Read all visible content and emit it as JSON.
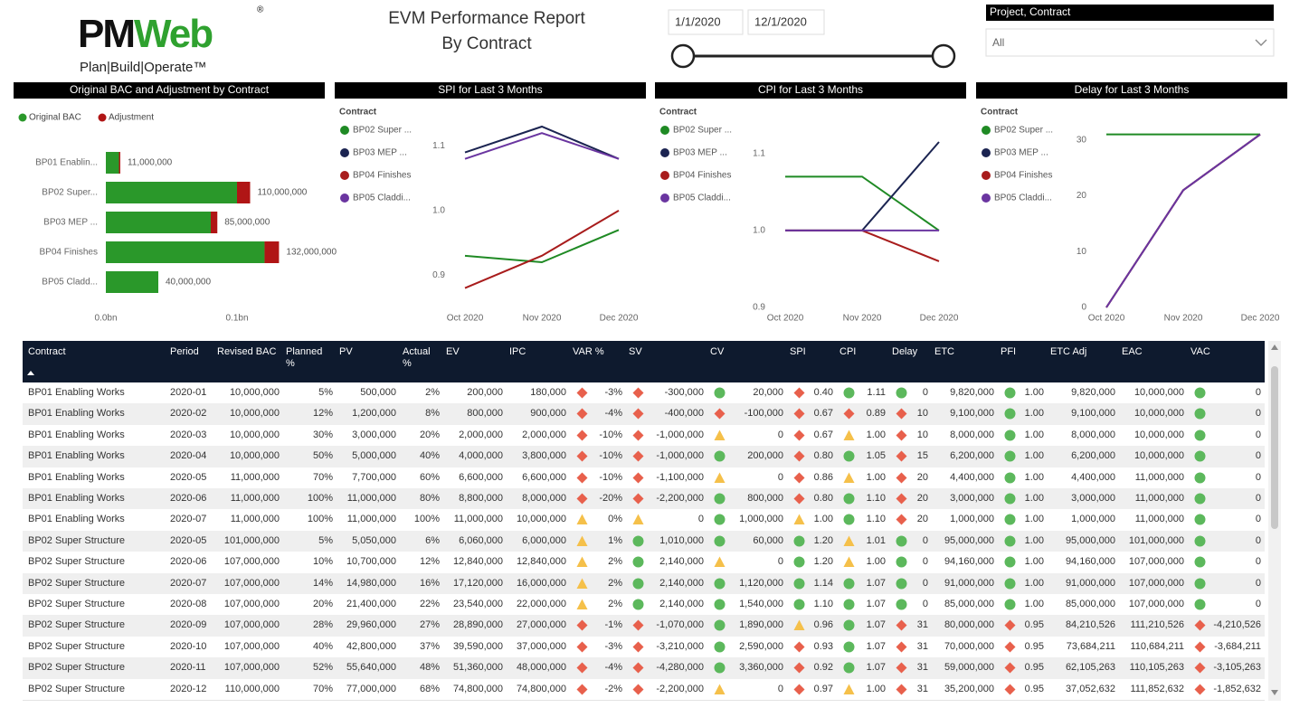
{
  "header": {
    "logo": {
      "parts": [
        "PM",
        "Web"
      ],
      "mark": "®",
      "tagline": "Plan|Build|Operate™"
    },
    "title_lines": [
      "EVM Performance Report",
      "By Contract"
    ],
    "date_start": "1/1/2020",
    "date_end": "12/1/2020",
    "filter": {
      "label": "Project, Contract",
      "value": "All"
    }
  },
  "chart_data": [
    {
      "type": "bar",
      "horizontal": true,
      "stacked": true,
      "title": "Original BAC and Adjustment by Contract",
      "categories": [
        "BP01 Enablin...",
        "BP02 Super...",
        "BP03 MEP ...",
        "BP04 Finishes",
        "BP05 Cladd..."
      ],
      "series": [
        {
          "name": "Original BAC",
          "color": "#2a982a",
          "values": [
            10000000,
            100000000,
            80000000,
            121000000,
            40000000
          ]
        },
        {
          "name": "Adjustment",
          "color": "#b01515",
          "values": [
            1000000,
            10000000,
            5000000,
            11000000,
            0
          ]
        }
      ],
      "total_labels": [
        "11,000,000",
        "110,000,000",
        "85,000,000",
        "132,000,000",
        "40,000,000"
      ],
      "xlim": [
        0,
        160000000
      ],
      "xticks": [
        {
          "value": 0,
          "label": "0.0bn"
        },
        {
          "value": 100000000,
          "label": "0.1bn"
        }
      ]
    },
    {
      "type": "line",
      "title": "SPI for Last 3 Months",
      "legend_title": "Contract",
      "categories": [
        "Oct 2020",
        "Nov 2020",
        "Dec 2020"
      ],
      "series": [
        {
          "name": "BP02 Super ...",
          "color": "#1f8a24",
          "values": [
            0.93,
            0.92,
            0.97
          ]
        },
        {
          "name": "BP03 MEP ...",
          "color": "#1b2451",
          "values": [
            1.09,
            1.13,
            1.08
          ]
        },
        {
          "name": "BP04 Finishes",
          "color": "#a81c1c",
          "values": [
            0.88,
            0.93,
            1.0
          ]
        },
        {
          "name": "BP05 Claddi...",
          "color": "#6a35a0",
          "values": [
            1.08,
            1.12,
            1.08
          ]
        }
      ],
      "ylim": [
        0.85,
        1.13
      ],
      "yticks": [
        0.9,
        {
          "value": 1,
          "label": "1.0"
        },
        1.1
      ]
    },
    {
      "type": "line",
      "title": "CPI for Last 3 Months",
      "legend_title": "Contract",
      "categories": [
        "Oct 2020",
        "Nov 2020",
        "Dec 2020"
      ],
      "series": [
        {
          "name": "BP02 Super ...",
          "color": "#1f8a24",
          "values": [
            1.07,
            1.07,
            1.0
          ]
        },
        {
          "name": "BP03 MEP ...",
          "color": "#1b2451",
          "values": [
            1.0,
            1.0,
            1.115
          ]
        },
        {
          "name": "BP04 Finishes",
          "color": "#a81c1c",
          "values": [
            1.0,
            1.0,
            0.96
          ]
        },
        {
          "name": "BP05 Claddi...",
          "color": "#6a35a0",
          "values": [
            1.0,
            1.0,
            1.0
          ]
        }
      ],
      "ylim": [
        0.9,
        1.135
      ],
      "yticks": [
        0.9,
        {
          "value": 1,
          "label": "1.0"
        },
        1.1
      ]
    },
    {
      "type": "line",
      "title": "Delay for Last 3 Months",
      "legend_title": "Contract",
      "categories": [
        "Oct 2020",
        "Nov 2020",
        "Dec 2020"
      ],
      "series": [
        {
          "name": "BP02 Super ...",
          "color": "#1f8a24",
          "values": [
            31,
            31,
            31
          ]
        },
        {
          "name": "BP03 MEP ...",
          "color": "#1b2451",
          "values": [
            0,
            21,
            31
          ]
        },
        {
          "name": "BP04 Finishes",
          "color": "#a81c1c",
          "values": [
            0,
            21,
            31
          ]
        },
        {
          "name": "BP05 Claddi...",
          "color": "#6a35a0",
          "values": [
            0,
            21,
            31
          ]
        }
      ],
      "ylim": [
        0,
        32.4
      ],
      "yticks": [
        0,
        10,
        20,
        30
      ]
    }
  ],
  "table": {
    "columns": [
      "Contract",
      "Period",
      "Revised BAC",
      "Planned %",
      "PV",
      "Actual %",
      "EV",
      "IPC",
      "VAR %",
      "SV",
      "CV",
      "SPI",
      "CPI",
      "Delay",
      "ETC",
      "PFI",
      "ETC Adj",
      "EAC",
      "VAC"
    ],
    "rows": [
      [
        "BP01 Enabling Works",
        "2020-01",
        "10,000,000",
        "5%",
        "500,000",
        "2%",
        "200,000",
        "180,000",
        {
          "text": "-3%",
          "status": "red"
        },
        {
          "text": "-300,000",
          "status": "red"
        },
        {
          "text": "20,000",
          "status": "green"
        },
        {
          "text": "0.40",
          "status": "red"
        },
        {
          "text": "1.11",
          "status": "green"
        },
        {
          "text": "0",
          "status": "green"
        },
        "9,820,000",
        {
          "text": "1.00",
          "status": "green"
        },
        "9,820,000",
        "10,000,000",
        {
          "text": "0",
          "status": "green"
        }
      ],
      [
        "BP01 Enabling Works",
        "2020-02",
        "10,000,000",
        "12%",
        "1,200,000",
        "8%",
        "800,000",
        "900,000",
        {
          "text": "-4%",
          "status": "red"
        },
        {
          "text": "-400,000",
          "status": "red"
        },
        {
          "text": "-100,000",
          "status": "red"
        },
        {
          "text": "0.67",
          "status": "red"
        },
        {
          "text": "0.89",
          "status": "red"
        },
        {
          "text": "10",
          "status": "red"
        },
        "9,100,000",
        {
          "text": "1.00",
          "status": "green"
        },
        "9,100,000",
        "10,000,000",
        {
          "text": "0",
          "status": "green"
        }
      ],
      [
        "BP01 Enabling Works",
        "2020-03",
        "10,000,000",
        "30%",
        "3,000,000",
        "20%",
        "2,000,000",
        "2,000,000",
        {
          "text": "-10%",
          "status": "red"
        },
        {
          "text": "-1,000,000",
          "status": "red"
        },
        {
          "text": "0",
          "status": "amber"
        },
        {
          "text": "0.67",
          "status": "red"
        },
        {
          "text": "1.00",
          "status": "amber"
        },
        {
          "text": "10",
          "status": "red"
        },
        "8,000,000",
        {
          "text": "1.00",
          "status": "green"
        },
        "8,000,000",
        "10,000,000",
        {
          "text": "0",
          "status": "green"
        }
      ],
      [
        "BP01 Enabling Works",
        "2020-04",
        "10,000,000",
        "50%",
        "5,000,000",
        "40%",
        "4,000,000",
        "3,800,000",
        {
          "text": "-10%",
          "status": "red"
        },
        {
          "text": "-1,000,000",
          "status": "red"
        },
        {
          "text": "200,000",
          "status": "green"
        },
        {
          "text": "0.80",
          "status": "red"
        },
        {
          "text": "1.05",
          "status": "green"
        },
        {
          "text": "15",
          "status": "red"
        },
        "6,200,000",
        {
          "text": "1.00",
          "status": "green"
        },
        "6,200,000",
        "10,000,000",
        {
          "text": "0",
          "status": "green"
        }
      ],
      [
        "BP01 Enabling Works",
        "2020-05",
        "11,000,000",
        "70%",
        "7,700,000",
        "60%",
        "6,600,000",
        "6,600,000",
        {
          "text": "-10%",
          "status": "red"
        },
        {
          "text": "-1,100,000",
          "status": "red"
        },
        {
          "text": "0",
          "status": "amber"
        },
        {
          "text": "0.86",
          "status": "red"
        },
        {
          "text": "1.00",
          "status": "amber"
        },
        {
          "text": "20",
          "status": "red"
        },
        "4,400,000",
        {
          "text": "1.00",
          "status": "green"
        },
        "4,400,000",
        "11,000,000",
        {
          "text": "0",
          "status": "green"
        }
      ],
      [
        "BP01 Enabling Works",
        "2020-06",
        "11,000,000",
        "100%",
        "11,000,000",
        "80%",
        "8,800,000",
        "8,000,000",
        {
          "text": "-20%",
          "status": "red"
        },
        {
          "text": "-2,200,000",
          "status": "red"
        },
        {
          "text": "800,000",
          "status": "green"
        },
        {
          "text": "0.80",
          "status": "red"
        },
        {
          "text": "1.10",
          "status": "green"
        },
        {
          "text": "20",
          "status": "red"
        },
        "3,000,000",
        {
          "text": "1.00",
          "status": "green"
        },
        "3,000,000",
        "11,000,000",
        {
          "text": "0",
          "status": "green"
        }
      ],
      [
        "BP01 Enabling Works",
        "2020-07",
        "11,000,000",
        "100%",
        "11,000,000",
        "100%",
        "11,000,000",
        "10,000,000",
        {
          "text": "0%",
          "status": "amber"
        },
        {
          "text": "0",
          "status": "amber"
        },
        {
          "text": "1,000,000",
          "status": "green"
        },
        {
          "text": "1.00",
          "status": "amber"
        },
        {
          "text": "1.10",
          "status": "green"
        },
        {
          "text": "20",
          "status": "red"
        },
        "1,000,000",
        {
          "text": "1.00",
          "status": "green"
        },
        "1,000,000",
        "11,000,000",
        {
          "text": "0",
          "status": "green"
        }
      ],
      [
        "BP02 Super Structure",
        "2020-05",
        "101,000,000",
        "5%",
        "5,050,000",
        "6%",
        "6,060,000",
        "6,000,000",
        {
          "text": "1%",
          "status": "amber"
        },
        {
          "text": "1,010,000",
          "status": "green"
        },
        {
          "text": "60,000",
          "status": "green"
        },
        {
          "text": "1.20",
          "status": "green"
        },
        {
          "text": "1.01",
          "status": "amber"
        },
        {
          "text": "0",
          "status": "green"
        },
        "95,000,000",
        {
          "text": "1.00",
          "status": "green"
        },
        "95,000,000",
        "101,000,000",
        {
          "text": "0",
          "status": "green"
        }
      ],
      [
        "BP02 Super Structure",
        "2020-06",
        "107,000,000",
        "10%",
        "10,700,000",
        "12%",
        "12,840,000",
        "12,840,000",
        {
          "text": "2%",
          "status": "amber"
        },
        {
          "text": "2,140,000",
          "status": "green"
        },
        {
          "text": "0",
          "status": "amber"
        },
        {
          "text": "1.20",
          "status": "green"
        },
        {
          "text": "1.00",
          "status": "amber"
        },
        {
          "text": "0",
          "status": "green"
        },
        "94,160,000",
        {
          "text": "1.00",
          "status": "green"
        },
        "94,160,000",
        "107,000,000",
        {
          "text": "0",
          "status": "green"
        }
      ],
      [
        "BP02 Super Structure",
        "2020-07",
        "107,000,000",
        "14%",
        "14,980,000",
        "16%",
        "17,120,000",
        "16,000,000",
        {
          "text": "2%",
          "status": "amber"
        },
        {
          "text": "2,140,000",
          "status": "green"
        },
        {
          "text": "1,120,000",
          "status": "green"
        },
        {
          "text": "1.14",
          "status": "green"
        },
        {
          "text": "1.07",
          "status": "green"
        },
        {
          "text": "0",
          "status": "green"
        },
        "91,000,000",
        {
          "text": "1.00",
          "status": "green"
        },
        "91,000,000",
        "107,000,000",
        {
          "text": "0",
          "status": "green"
        }
      ],
      [
        "BP02 Super Structure",
        "2020-08",
        "107,000,000",
        "20%",
        "21,400,000",
        "22%",
        "23,540,000",
        "22,000,000",
        {
          "text": "2%",
          "status": "amber"
        },
        {
          "text": "2,140,000",
          "status": "green"
        },
        {
          "text": "1,540,000",
          "status": "green"
        },
        {
          "text": "1.10",
          "status": "green"
        },
        {
          "text": "1.07",
          "status": "green"
        },
        {
          "text": "0",
          "status": "green"
        },
        "85,000,000",
        {
          "text": "1.00",
          "status": "green"
        },
        "85,000,000",
        "107,000,000",
        {
          "text": "0",
          "status": "green"
        }
      ],
      [
        "BP02 Super Structure",
        "2020-09",
        "107,000,000",
        "28%",
        "29,960,000",
        "27%",
        "28,890,000",
        "27,000,000",
        {
          "text": "-1%",
          "status": "red"
        },
        {
          "text": "-1,070,000",
          "status": "red"
        },
        {
          "text": "1,890,000",
          "status": "green"
        },
        {
          "text": "0.96",
          "status": "amber"
        },
        {
          "text": "1.07",
          "status": "green"
        },
        {
          "text": "31",
          "status": "red"
        },
        "80,000,000",
        {
          "text": "0.95",
          "status": "red"
        },
        "84,210,526",
        "111,210,526",
        {
          "text": "-4,210,526",
          "status": "red"
        }
      ],
      [
        "BP02 Super Structure",
        "2020-10",
        "107,000,000",
        "40%",
        "42,800,000",
        "37%",
        "39,590,000",
        "37,000,000",
        {
          "text": "-3%",
          "status": "red"
        },
        {
          "text": "-3,210,000",
          "status": "red"
        },
        {
          "text": "2,590,000",
          "status": "green"
        },
        {
          "text": "0.93",
          "status": "red"
        },
        {
          "text": "1.07",
          "status": "green"
        },
        {
          "text": "31",
          "status": "red"
        },
        "70,000,000",
        {
          "text": "0.95",
          "status": "red"
        },
        "73,684,211",
        "110,684,211",
        {
          "text": "-3,684,211",
          "status": "red"
        }
      ],
      [
        "BP02 Super Structure",
        "2020-11",
        "107,000,000",
        "52%",
        "55,640,000",
        "48%",
        "51,360,000",
        "48,000,000",
        {
          "text": "-4%",
          "status": "red"
        },
        {
          "text": "-4,280,000",
          "status": "red"
        },
        {
          "text": "3,360,000",
          "status": "green"
        },
        {
          "text": "0.92",
          "status": "red"
        },
        {
          "text": "1.07",
          "status": "green"
        },
        {
          "text": "31",
          "status": "red"
        },
        "59,000,000",
        {
          "text": "0.95",
          "status": "red"
        },
        "62,105,263",
        "110,105,263",
        {
          "text": "-3,105,263",
          "status": "red"
        }
      ],
      [
        "BP02 Super Structure",
        "2020-12",
        "110,000,000",
        "70%",
        "77,000,000",
        "68%",
        "74,800,000",
        "74,800,000",
        {
          "text": "-2%",
          "status": "red"
        },
        {
          "text": "-2,200,000",
          "status": "red"
        },
        {
          "text": "0",
          "status": "amber"
        },
        {
          "text": "0.97",
          "status": "red"
        },
        {
          "text": "1.00",
          "status": "amber"
        },
        {
          "text": "31",
          "status": "red"
        },
        "35,200,000",
        {
          "text": "0.95",
          "status": "red"
        },
        "37,052,632",
        "111,852,632",
        {
          "text": "-1,852,632",
          "status": "red"
        }
      ]
    ]
  }
}
